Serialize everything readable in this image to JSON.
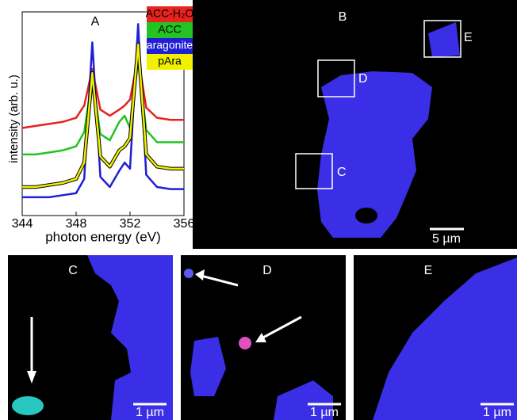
{
  "chart_data": {
    "type": "line",
    "title": "A",
    "xlabel": "photon energy (eV)",
    "ylabel": "intensity (arb. u.)",
    "x": [
      344,
      345,
      346,
      347,
      348,
      348.6,
      349.2,
      349.8,
      350.5,
      351.2,
      351.6,
      352,
      352.6,
      353.2,
      354,
      355,
      356
    ],
    "xlim": [
      344,
      356
    ],
    "xticks": [
      344,
      348,
      352,
      356
    ],
    "ylim": [
      0,
      10
    ],
    "series": [
      {
        "name": "ACC-H₂O",
        "color": "#e8221c",
        "values": [
          4.3,
          4.4,
          4.5,
          4.6,
          4.8,
          5.4,
          7.2,
          5.2,
          4.9,
          5.2,
          5.4,
          5.7,
          7.8,
          5.3,
          4.8,
          4.7,
          4.7
        ]
      },
      {
        "name": "ACC",
        "color": "#22c322",
        "values": [
          3.0,
          3.0,
          3.1,
          3.2,
          3.4,
          4.1,
          6.8,
          4.0,
          3.7,
          4.6,
          4.9,
          4.3,
          7.6,
          4.2,
          3.6,
          3.6,
          3.6
        ]
      },
      {
        "name": "aragonite",
        "color": "#1f1fd6",
        "values": [
          0.9,
          0.9,
          0.9,
          1.0,
          1.1,
          1.8,
          8.5,
          1.9,
          1.4,
          2.2,
          2.6,
          2.3,
          9.4,
          2.0,
          1.4,
          1.3,
          1.3
        ]
      },
      {
        "name": "pAra",
        "color": "#f0f000",
        "values": [
          1.4,
          1.4,
          1.5,
          1.6,
          1.8,
          2.6,
          7.0,
          2.9,
          2.4,
          3.2,
          3.4,
          3.8,
          8.4,
          3.0,
          2.4,
          2.3,
          2.3
        ]
      }
    ]
  },
  "panels": {
    "b": {
      "label": "B",
      "scale": "5 µm",
      "boxes": [
        "C",
        "D",
        "E"
      ]
    },
    "c": {
      "label": "C",
      "scale": "1 µm"
    },
    "d": {
      "label": "D",
      "scale": "1 µm"
    },
    "e": {
      "label": "E",
      "scale": "1 µm"
    }
  }
}
